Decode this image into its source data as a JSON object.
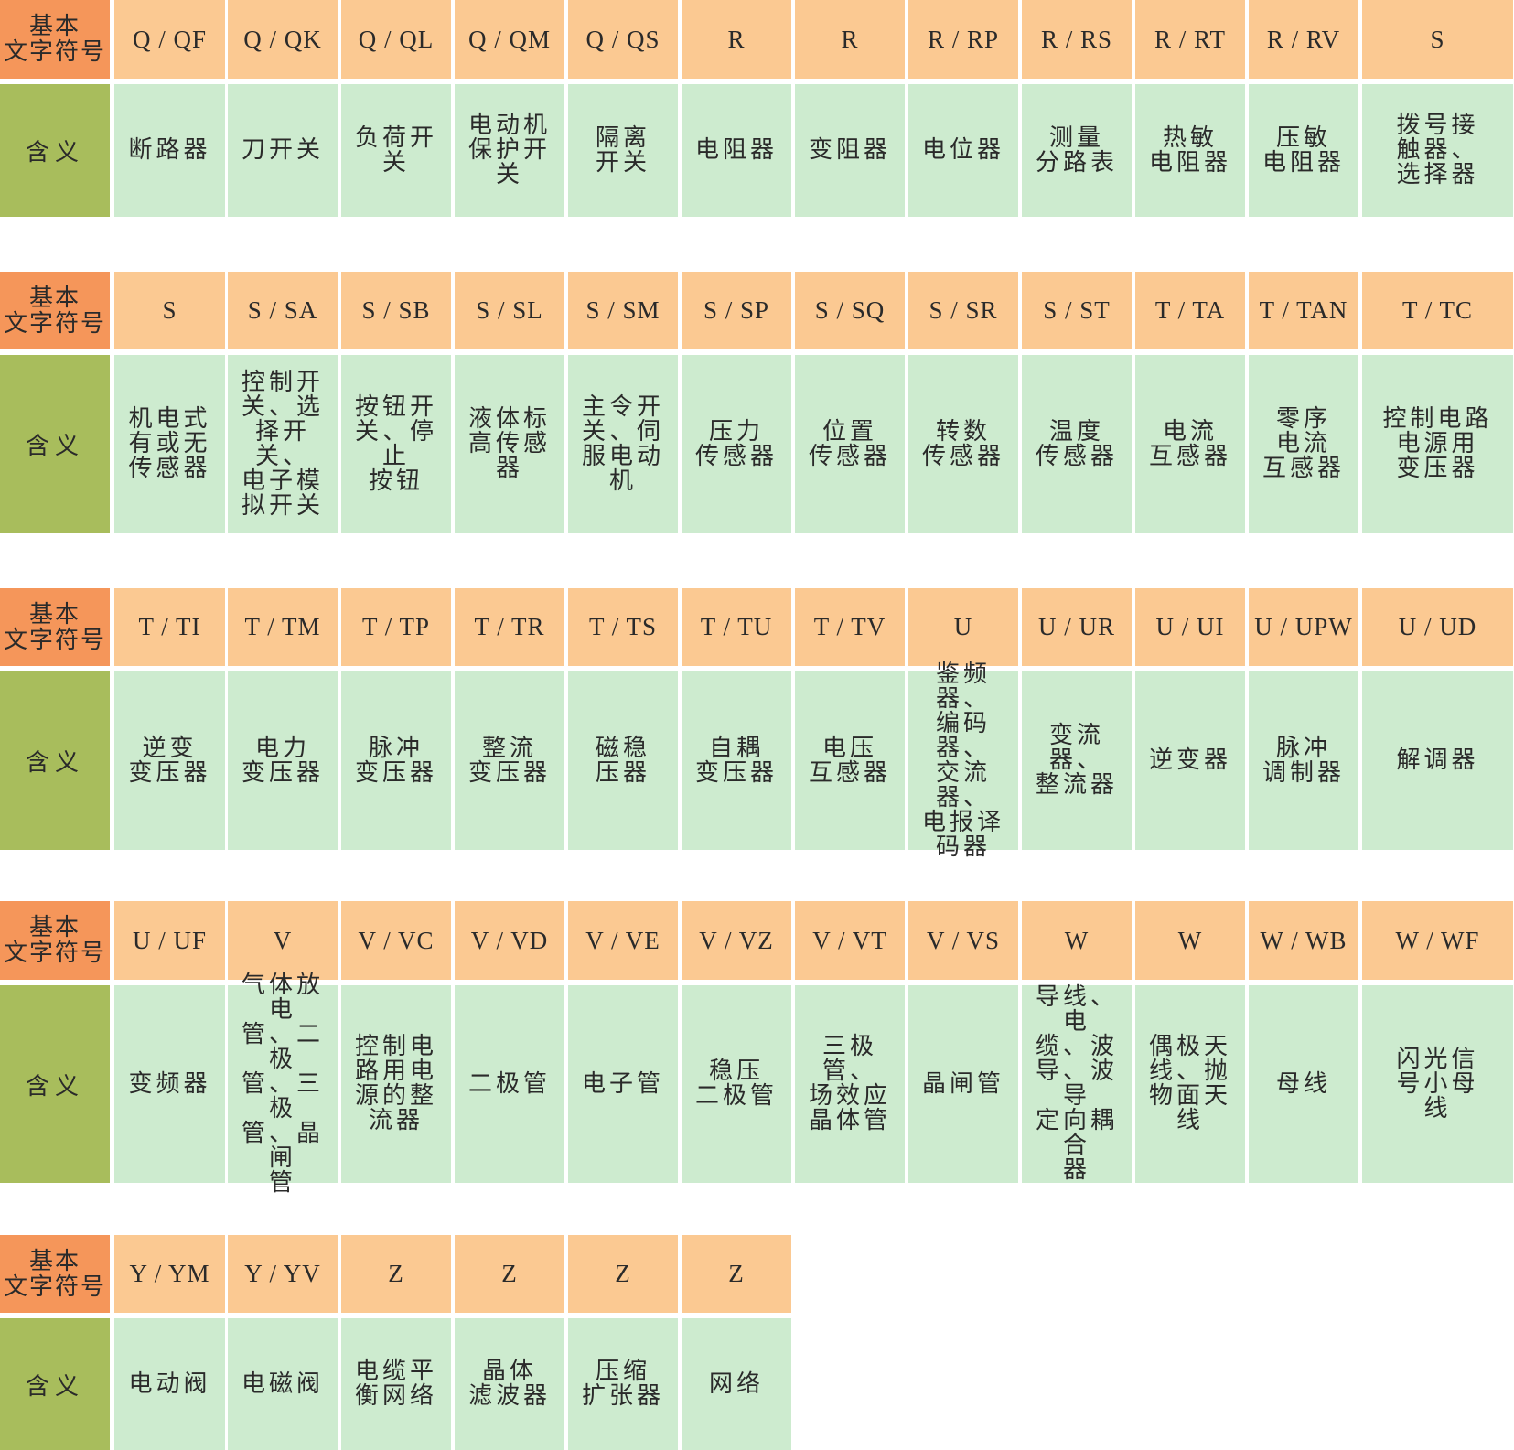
{
  "header_labels": {
    "code": "基本\n文字符号",
    "meaning": "含义"
  },
  "blocks": [
    {
      "codes": [
        "Q / QF",
        "Q / QK",
        "Q / QL",
        "Q / QM",
        "Q / QS",
        "R",
        "R",
        "R / RP",
        "R / RS",
        "R / RT",
        "R / RV",
        "S"
      ],
      "meanings": [
        "断路器",
        "刀开关",
        "负荷开关",
        "电动机保护开关",
        "隔离\n开关",
        "电阻器",
        "变阻器",
        "电位器",
        "测量\n分路表",
        "热敏\n电阻器",
        "压敏\n电阻器",
        "拨号接\n触器、\n选择器"
      ]
    },
    {
      "codes": [
        "S",
        "S / SA",
        "S / SB",
        "S / SL",
        "S / SM",
        "S / SP",
        "S / SQ",
        "S / SR",
        "S / ST",
        "T / TA",
        "T / TAN",
        "T / TC"
      ],
      "meanings": [
        "机电式\n有或无\n传感器",
        "控制开\n关、选\n择开关、\n电子模\n拟开关",
        "按钮开\n关、停止\n按钮",
        "液体标\n高传感\n器",
        "主令开\n关、伺\n服电动\n机",
        "压力\n传感器",
        "位置\n传感器",
        "转数\n传感器",
        "温度\n传感器",
        "电流\n互感器",
        "零序\n电流\n互感器",
        "控制电路\n电源用\n变压器"
      ]
    },
    {
      "codes": [
        "T / TI",
        "T / TM",
        "T / TP",
        "T / TR",
        "T / TS",
        "T / TU",
        "T / TV",
        "U",
        "U / UR",
        "U / UI",
        "U / UPW",
        "U / UD"
      ],
      "meanings": [
        "逆变\n变压器",
        "电力\n变压器",
        "脉冲\n变压器",
        "整流\n变压器",
        "磁稳\n压器",
        "自耦\n变压器",
        "电压\n互感器",
        "鉴频器、\n编码器、\n交流器、\n电报译\n码器",
        "变流器、\n整流器",
        "逆变器",
        "脉冲\n调制器",
        "解调器"
      ]
    },
    {
      "codes": [
        "U / UF",
        "V",
        "V / VC",
        "V / VD",
        "V / VE",
        "V / VZ",
        "V / VT",
        "V / VS",
        "W",
        "W",
        "W / WB",
        "W / WF"
      ],
      "meanings": [
        "变频器",
        "气体放电\n管、二极\n管、三极\n管、晶闸\n管",
        "控制电\n路用电\n源的整\n流器",
        "二极管",
        "电子管",
        "稳压\n二极管",
        "三极管、\n场效应\n晶体管",
        "晶闸管",
        "导线、电\n缆、波\n导、波导\n定向耦合\n器",
        "偶极天\n线、抛\n物面天\n线",
        "母线",
        "闪光信\n号小母\n线"
      ]
    },
    {
      "codes": [
        "Y / YM",
        "Y / YV",
        "Z",
        "Z",
        "Z",
        "Z"
      ],
      "meanings": [
        "电动阀",
        "电磁阀",
        "电缆平\n衡网络",
        "晶体\n滤波器",
        "压缩\n扩张器",
        "网络"
      ]
    }
  ]
}
